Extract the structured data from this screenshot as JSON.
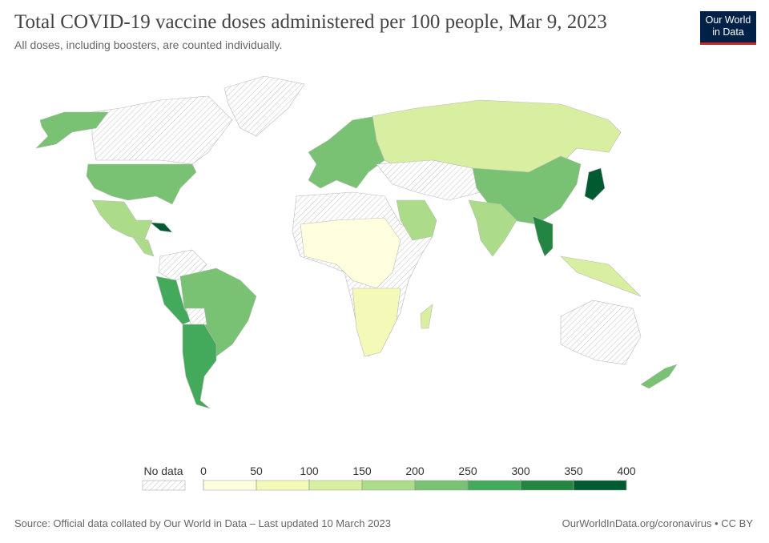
{
  "header": {
    "title": "Total COVID-19 vaccine doses administered per 100 people, Mar 9, 2023",
    "subtitle": "All doses, including boosters, are counted individually."
  },
  "logo": {
    "line1": "Our World",
    "line2": "in Data"
  },
  "legend": {
    "no_data": "No data",
    "ticks": [
      0,
      50,
      100,
      150,
      200,
      250,
      300,
      350,
      400
    ],
    "colors": [
      "#ffffe0",
      "#f4f9b7",
      "#d8eea0",
      "#acdb89",
      "#79c274",
      "#43a95b",
      "#248542",
      "#005a32"
    ]
  },
  "footer": {
    "source": "Source: Official data collated by Our World in Data – Last updated 10 March 2023",
    "link": "OurWorldInData.org/coronavirus • CC BY"
  }
}
